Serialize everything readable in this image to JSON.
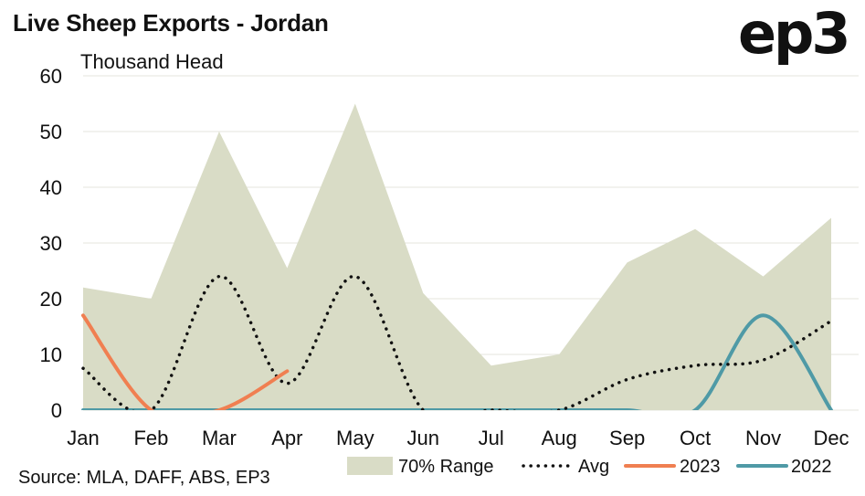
{
  "title": "Live Sheep Exports - Jordan",
  "logo_text": "ep3",
  "source": "Source: MLA, DAFF, ABS, EP3",
  "chart_data": {
    "type": "line",
    "title": "Live Sheep Exports - Jordan",
    "ylabel": "Thousand Head",
    "xlabel": "",
    "ylim": [
      0,
      60
    ],
    "yticks": [
      "0",
      "10",
      "20",
      "30",
      "40",
      "50",
      "60"
    ],
    "categories": [
      "Jan",
      "Feb",
      "Mar",
      "Apr",
      "May",
      "Jun",
      "Jul",
      "Aug",
      "Sep",
      "Oct",
      "Nov",
      "Dec"
    ],
    "grid": "horizontal",
    "legend_position": "bottom-right",
    "range": {
      "name": "70% Range",
      "color": "#d9dcc6",
      "upper": [
        22,
        20,
        50,
        25.5,
        55,
        21,
        8,
        10,
        26.5,
        32.5,
        24,
        34.5
      ],
      "lower": [
        0,
        0,
        0,
        0,
        0,
        0,
        0,
        0,
        0,
        0,
        0,
        0
      ]
    },
    "series": [
      {
        "name": "Avg",
        "style": "dotted",
        "color": "#111111",
        "values": [
          7.5,
          0,
          24,
          4.8,
          24,
          0,
          0,
          0,
          5.5,
          8,
          9,
          16
        ]
      },
      {
        "name": "2023",
        "style": "solid",
        "color": "#f07f51",
        "values": [
          17,
          0,
          0,
          7,
          null,
          null,
          null,
          null,
          null,
          null,
          null,
          null
        ]
      },
      {
        "name": "2022",
        "style": "solid",
        "color": "#4f9aa6",
        "values": [
          0,
          0,
          0,
          0,
          0,
          0,
          0,
          0,
          0,
          0,
          17,
          0
        ]
      }
    ]
  }
}
